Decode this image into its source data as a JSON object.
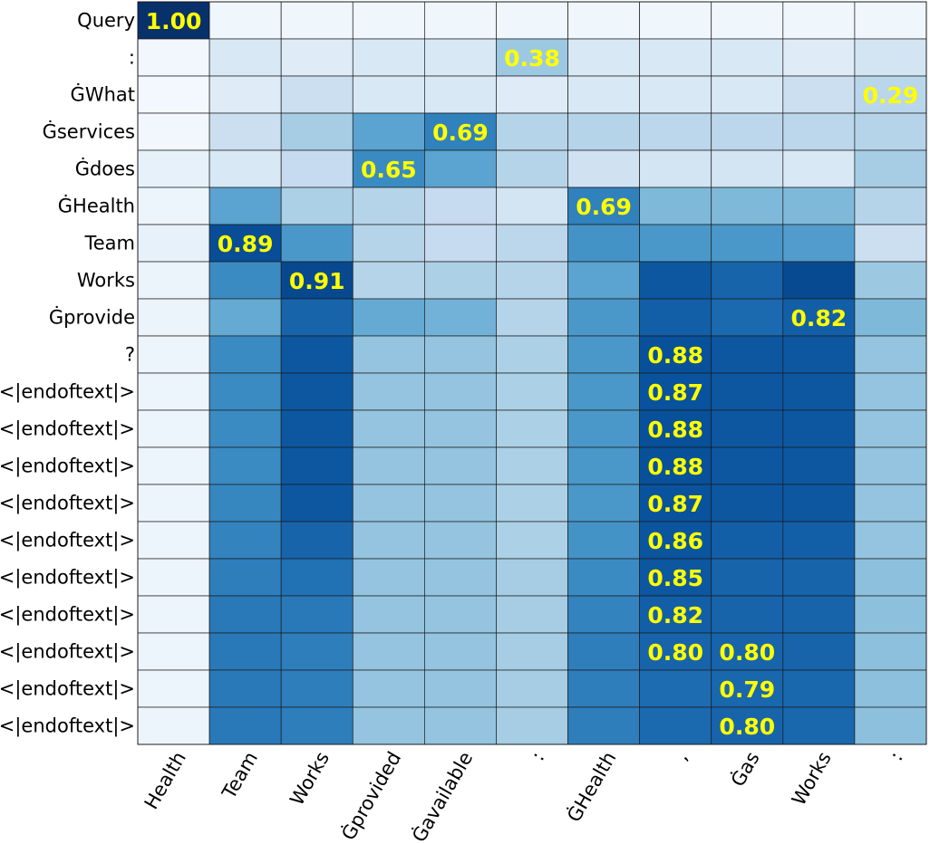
{
  "chart_data": {
    "type": "heatmap",
    "colormap": "Blues",
    "vmin": 0,
    "vmax": 1,
    "annotation_color": "#ffff00",
    "grid_color": "#1a1a1a",
    "row_labels": [
      "Query",
      ":",
      "ĠWhat",
      "Ġservices",
      "Ġdoes",
      "ĠHealth",
      "Team",
      "Works",
      "Ġprovide",
      "?",
      "<|endoftext|>",
      "<|endoftext|>",
      "<|endoftext|>",
      "<|endoftext|>",
      "<|endoftext|>",
      "<|endoftext|>",
      "<|endoftext|>",
      "<|endoftext|>",
      "<|endoftext|>",
      "<|endoftext|>"
    ],
    "col_labels": [
      "Health",
      "Team",
      "Works",
      "Ġprovided",
      "Ġavailable",
      ":",
      "ĠHealth",
      ",",
      "Ġas",
      "Works",
      ":"
    ],
    "values": [
      [
        1.0,
        0.04,
        0.04,
        0.04,
        0.04,
        0.04,
        0.04,
        0.04,
        0.04,
        0.04,
        0.04
      ],
      [
        0.03,
        0.15,
        0.12,
        0.15,
        0.15,
        0.38,
        0.15,
        0.15,
        0.15,
        0.12,
        0.18
      ],
      [
        0.02,
        0.12,
        0.22,
        0.15,
        0.15,
        0.12,
        0.15,
        0.15,
        0.15,
        0.22,
        0.29
      ],
      [
        0.03,
        0.22,
        0.35,
        0.55,
        0.69,
        0.3,
        0.3,
        0.28,
        0.28,
        0.28,
        0.3
      ],
      [
        0.08,
        0.15,
        0.25,
        0.65,
        0.55,
        0.3,
        0.2,
        0.18,
        0.18,
        0.15,
        0.35
      ],
      [
        0.05,
        0.55,
        0.33,
        0.3,
        0.25,
        0.18,
        0.69,
        0.45,
        0.45,
        0.45,
        0.3
      ],
      [
        0.08,
        0.89,
        0.6,
        0.3,
        0.25,
        0.28,
        0.62,
        0.6,
        0.6,
        0.58,
        0.22
      ],
      [
        0.06,
        0.65,
        0.91,
        0.3,
        0.33,
        0.3,
        0.55,
        0.85,
        0.8,
        0.9,
        0.38
      ],
      [
        0.06,
        0.52,
        0.8,
        0.52,
        0.48,
        0.3,
        0.6,
        0.82,
        0.78,
        0.82,
        0.45
      ],
      [
        0.05,
        0.65,
        0.85,
        0.4,
        0.4,
        0.33,
        0.6,
        0.88,
        0.85,
        0.85,
        0.4
      ],
      [
        0.05,
        0.65,
        0.85,
        0.4,
        0.4,
        0.33,
        0.6,
        0.87,
        0.85,
        0.85,
        0.4
      ],
      [
        0.05,
        0.65,
        0.85,
        0.4,
        0.4,
        0.33,
        0.6,
        0.88,
        0.85,
        0.85,
        0.4
      ],
      [
        0.05,
        0.65,
        0.85,
        0.4,
        0.4,
        0.33,
        0.6,
        0.88,
        0.85,
        0.85,
        0.4
      ],
      [
        0.05,
        0.67,
        0.85,
        0.4,
        0.4,
        0.33,
        0.6,
        0.87,
        0.85,
        0.85,
        0.4
      ],
      [
        0.05,
        0.68,
        0.8,
        0.4,
        0.4,
        0.33,
        0.62,
        0.86,
        0.82,
        0.82,
        0.4
      ],
      [
        0.05,
        0.7,
        0.75,
        0.4,
        0.4,
        0.35,
        0.65,
        0.85,
        0.8,
        0.8,
        0.42
      ],
      [
        0.05,
        0.72,
        0.72,
        0.4,
        0.4,
        0.35,
        0.68,
        0.82,
        0.8,
        0.8,
        0.42
      ],
      [
        0.05,
        0.72,
        0.7,
        0.4,
        0.4,
        0.35,
        0.7,
        0.8,
        0.8,
        0.8,
        0.42
      ],
      [
        0.05,
        0.72,
        0.7,
        0.4,
        0.4,
        0.35,
        0.7,
        0.77,
        0.79,
        0.79,
        0.42
      ],
      [
        0.05,
        0.72,
        0.7,
        0.4,
        0.4,
        0.35,
        0.7,
        0.78,
        0.8,
        0.79,
        0.42
      ]
    ],
    "annotations": [
      {
        "row": 0,
        "col": 0,
        "label": "1.00"
      },
      {
        "row": 1,
        "col": 5,
        "label": "0.38"
      },
      {
        "row": 2,
        "col": 10,
        "label": "0.29"
      },
      {
        "row": 3,
        "col": 4,
        "label": "0.69"
      },
      {
        "row": 4,
        "col": 3,
        "label": "0.65"
      },
      {
        "row": 5,
        "col": 6,
        "label": "0.69"
      },
      {
        "row": 6,
        "col": 1,
        "label": "0.89"
      },
      {
        "row": 7,
        "col": 2,
        "label": "0.91"
      },
      {
        "row": 8,
        "col": 9,
        "label": "0.82"
      },
      {
        "row": 9,
        "col": 7,
        "label": "0.88"
      },
      {
        "row": 10,
        "col": 7,
        "label": "0.87"
      },
      {
        "row": 11,
        "col": 7,
        "label": "0.88"
      },
      {
        "row": 12,
        "col": 7,
        "label": "0.88"
      },
      {
        "row": 13,
        "col": 7,
        "label": "0.87"
      },
      {
        "row": 14,
        "col": 7,
        "label": "0.86"
      },
      {
        "row": 15,
        "col": 7,
        "label": "0.85"
      },
      {
        "row": 16,
        "col": 7,
        "label": "0.82"
      },
      {
        "row": 17,
        "col": 7,
        "label": "0.80"
      },
      {
        "row": 17,
        "col": 8,
        "label": "0.80"
      },
      {
        "row": 18,
        "col": 8,
        "label": "0.79"
      },
      {
        "row": 19,
        "col": 8,
        "label": "0.80"
      }
    ]
  }
}
